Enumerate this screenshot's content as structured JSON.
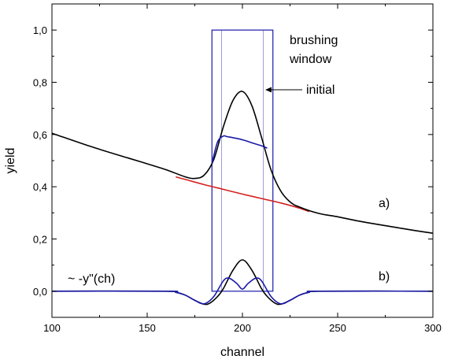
{
  "chart_data": {
    "type": "line",
    "title": "",
    "xlabel": "channel",
    "ylabel": "yield",
    "xlim": [
      100,
      300
    ],
    "ylim": [
      -0.1,
      1.1
    ],
    "grid": false,
    "legend": "none",
    "x_ticks": [
      {
        "value": 100,
        "label": "100"
      },
      {
        "value": 150,
        "label": "150"
      },
      {
        "value": 200,
        "label": "200"
      },
      {
        "value": 250,
        "label": "250"
      },
      {
        "value": 300,
        "label": "300"
      }
    ],
    "y_ticks": [
      {
        "value": 0.0,
        "label": "0,0"
      },
      {
        "value": 0.2,
        "label": "0,2"
      },
      {
        "value": 0.4,
        "label": "0,4"
      },
      {
        "value": 0.6,
        "label": "0,6"
      },
      {
        "value": 0.8,
        "label": "0,8"
      },
      {
        "value": 1.0,
        "label": "1,0"
      }
    ],
    "series": [
      {
        "role": "spectrum-a-black",
        "color": "#000000",
        "x": [
          100,
          120,
          140,
          150,
          160,
          170,
          175,
          180,
          185,
          190,
          195,
          200,
          205,
          210,
          215,
          220,
          225,
          230,
          240,
          250,
          260,
          270,
          280,
          290,
          300
        ],
        "y": [
          0.605,
          0.555,
          0.51,
          0.488,
          0.465,
          0.438,
          0.432,
          0.445,
          0.505,
          0.63,
          0.73,
          0.765,
          0.71,
          0.59,
          0.465,
          0.385,
          0.342,
          0.322,
          0.298,
          0.285,
          0.27,
          0.257,
          0.245,
          0.233,
          0.222
        ]
      },
      {
        "role": "background-red",
        "color": "#d42020",
        "x": [
          165,
          170,
          180,
          190,
          200,
          210,
          220,
          230,
          235
        ],
        "y": [
          0.438,
          0.428,
          0.408,
          0.39,
          0.372,
          0.355,
          0.338,
          0.318,
          0.305
        ]
      },
      {
        "role": "brushed-blue",
        "color": "#1a1aaa",
        "x": [
          184,
          187,
          190,
          192,
          200,
          205,
          210,
          213
        ],
        "y": [
          0.49,
          0.572,
          0.594,
          0.592,
          0.58,
          0.568,
          0.557,
          0.548
        ]
      },
      {
        "role": "second-derivative-black",
        "color": "#000000",
        "x": [
          100,
          160,
          165,
          170,
          175,
          180,
          183,
          187,
          190,
          195,
          200,
          205,
          210,
          213,
          217,
          220,
          225,
          230,
          235,
          240,
          300
        ],
        "y": [
          0.0,
          0.0,
          -0.004,
          -0.015,
          -0.035,
          -0.05,
          -0.045,
          -0.02,
          0.01,
          0.08,
          0.12,
          0.08,
          0.01,
          -0.02,
          -0.045,
          -0.05,
          -0.035,
          -0.015,
          -0.004,
          0.0,
          0.0
        ]
      },
      {
        "role": "second-derivative-blue",
        "color": "#1a1aaa",
        "x": [
          100,
          160,
          165,
          170,
          175,
          180,
          185,
          190,
          193,
          197,
          200,
          203,
          207,
          210,
          215,
          220,
          225,
          230,
          235,
          240,
          300
        ],
        "y": [
          0.0,
          0.0,
          -0.004,
          -0.015,
          -0.035,
          -0.048,
          -0.02,
          0.04,
          0.05,
          0.03,
          0.008,
          0.03,
          0.05,
          0.04,
          -0.02,
          -0.048,
          -0.035,
          -0.015,
          -0.004,
          0.0,
          0.0
        ]
      }
    ],
    "brushing_window": {
      "color": "#1a1aaa",
      "x_outer": [
        184,
        216
      ],
      "x_inner": [
        189,
        211
      ],
      "y_top": 1.0,
      "y_bottom": 0.0
    },
    "annotations": {
      "brushing_line1": "brushing",
      "brushing_line2": "window",
      "initial": "initial",
      "label_a": "a)",
      "label_b": "b)",
      "derivative": "~ -y\"(ch)"
    }
  }
}
